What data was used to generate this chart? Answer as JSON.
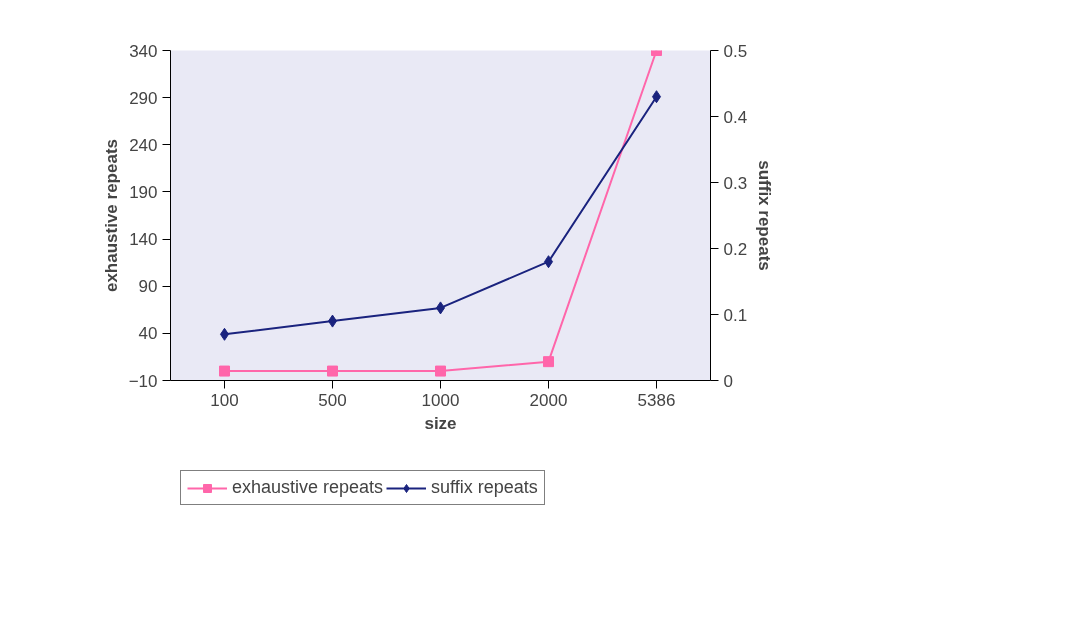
{
  "chart_data": {
    "type": "line",
    "xlabel": "size",
    "ylabel": "exhaustive repeats",
    "y2label": "suffix repeats",
    "categories": [
      "100",
      "500",
      "1000",
      "2000",
      "5386"
    ],
    "series": [
      {
        "name": "exhaustive repeats",
        "color": "#ff66aa",
        "marker": "square",
        "values": [
          0,
          0,
          0,
          10,
          340
        ]
      },
      {
        "name": "suffix repeats",
        "color": "#1a237e",
        "marker": "diamond",
        "axis": "y2",
        "values": [
          0.07,
          0.09,
          0.11,
          0.18,
          0.43
        ]
      }
    ],
    "ylim": [
      -10,
      340
    ],
    "yticks": [
      -10,
      40,
      90,
      140,
      190,
      240,
      290,
      340
    ],
    "y2lim": [
      0,
      0.5
    ],
    "y2ticks": [
      0,
      0.1,
      0.2,
      0.3,
      0.4,
      0.5
    ],
    "grid": false,
    "legend": "bottom",
    "line_style": "solid"
  }
}
